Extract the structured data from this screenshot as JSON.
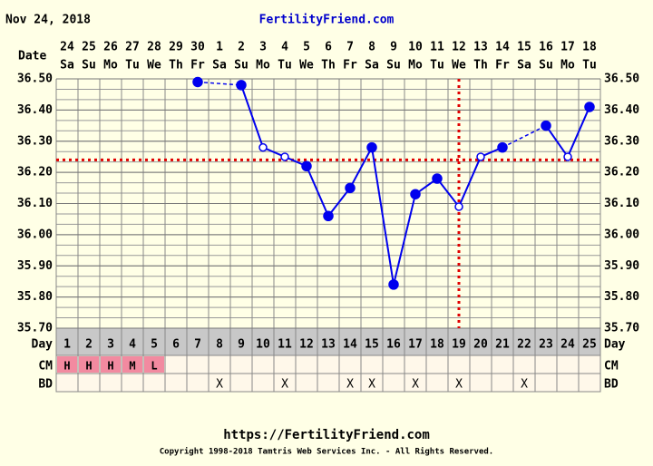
{
  "chart_data": {
    "type": "line",
    "title": "FertilityFriend.com",
    "date_label": "Nov 24, 2018",
    "top_axis_label": "Date",
    "bottom_axis_label": "Day",
    "dates": [
      "24",
      "25",
      "26",
      "27",
      "28",
      "29",
      "30",
      "1",
      "2",
      "3",
      "4",
      "5",
      "6",
      "7",
      "8",
      "9",
      "10",
      "11",
      "12",
      "13",
      "14",
      "15",
      "16",
      "17",
      "18"
    ],
    "weekdays": [
      "Sa",
      "Su",
      "Mo",
      "Tu",
      "We",
      "Th",
      "Fr",
      "Sa",
      "Su",
      "Mo",
      "Tu",
      "We",
      "Th",
      "Fr",
      "Sa",
      "Su",
      "Mo",
      "Tu",
      "We",
      "Th",
      "Fr",
      "Sa",
      "Su",
      "Mo",
      "Tu"
    ],
    "categories": [
      "1",
      "2",
      "3",
      "4",
      "5",
      "6",
      "7",
      "8",
      "9",
      "10",
      "11",
      "12",
      "13",
      "14",
      "15",
      "16",
      "17",
      "18",
      "19",
      "20",
      "21",
      "22",
      "23",
      "24",
      "25"
    ],
    "series": [
      {
        "color": "#0000ee",
        "values": [
          null,
          null,
          null,
          null,
          null,
          null,
          36.49,
          null,
          36.48,
          36.28,
          36.25,
          36.22,
          36.06,
          36.15,
          36.28,
          35.84,
          36.13,
          36.18,
          36.09,
          36.25,
          36.28,
          null,
          36.35,
          36.25,
          36.41
        ],
        "open": [
          false,
          false,
          false,
          false,
          false,
          false,
          false,
          false,
          false,
          true,
          true,
          false,
          false,
          false,
          false,
          false,
          false,
          false,
          true,
          true,
          false,
          false,
          false,
          true,
          false
        ]
      }
    ],
    "ylim": [
      35.7,
      36.5
    ],
    "yticks": [
      {
        "value": 35.7,
        "label": "35.70"
      },
      {
        "value": 35.8,
        "label": "35.80"
      },
      {
        "value": 35.9,
        "label": "35.90"
      },
      {
        "value": 36.0,
        "label": "36.00"
      },
      {
        "value": 36.1,
        "label": "36.10"
      },
      {
        "value": 36.2,
        "label": "36.20"
      },
      {
        "value": 36.3,
        "label": "36.30"
      },
      {
        "value": 36.4,
        "label": "36.40"
      },
      {
        "value": 36.5,
        "label": "36.50"
      }
    ],
    "grid": true,
    "coverline": {
      "value": 36.24,
      "color": "#e00000"
    },
    "ovulation_day_index": 18,
    "cm": {
      "label": "CM",
      "color": "#f28aa0",
      "values": [
        "H",
        "H",
        "H",
        "M",
        "L",
        null,
        null,
        null,
        null,
        null,
        null,
        null,
        null,
        null,
        null,
        null,
        null,
        null,
        null,
        null,
        null,
        null,
        null,
        null,
        null
      ]
    },
    "bd": {
      "label": "BD",
      "values": [
        null,
        null,
        null,
        null,
        null,
        null,
        null,
        "X",
        null,
        null,
        "X",
        null,
        null,
        "X",
        "X",
        null,
        "X",
        null,
        "X",
        null,
        null,
        "X",
        null,
        null,
        null
      ]
    },
    "footer_url": "https://FertilityFriend.com",
    "copyright": "Copyright 1998-2018 Tamtris Web Services Inc. - All Rights Reserved."
  }
}
